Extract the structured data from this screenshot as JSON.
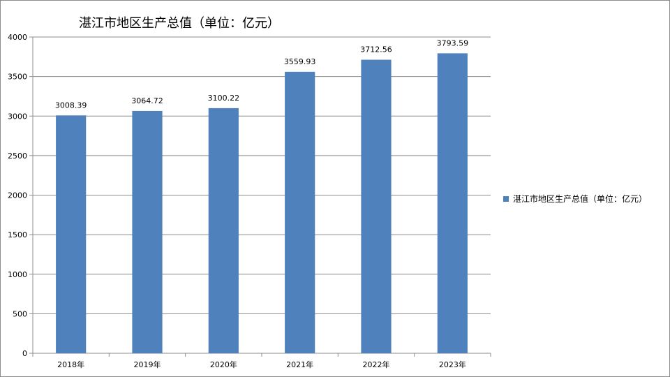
{
  "chart_data": {
    "type": "bar",
    "title": "湛江市地区生产总值（单位：亿元）",
    "categories": [
      "2018年",
      "2019年",
      "2020年",
      "2021年",
      "2022年",
      "2023年"
    ],
    "series": [
      {
        "name": "湛江市地区生产总值（单位：亿元）",
        "values": [
          3008.39,
          3064.72,
          3100.22,
          3559.93,
          3712.56,
          3793.59
        ],
        "data_labels": [
          "3008.39",
          "3064.72",
          "3100.22",
          "3559.93",
          "3712.56",
          "3793.59"
        ],
        "color": "#4f81bd"
      }
    ],
    "ylim": [
      0,
      4000
    ],
    "yticks": [
      0,
      500,
      1000,
      1500,
      2000,
      2500,
      3000,
      3500,
      4000
    ],
    "ytick_labels": [
      "0",
      "500",
      "1000",
      "1500",
      "2000",
      "2500",
      "3000",
      "3500",
      "4000"
    ],
    "grid": true,
    "legend_position": "right"
  }
}
